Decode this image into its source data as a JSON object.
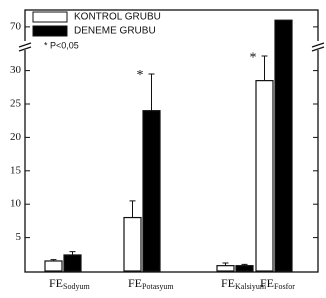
{
  "chart_data": {
    "type": "bar",
    "category_prefix": "FE",
    "categories": [
      "Sodyum",
      "Potasyum",
      "Kalsiyum",
      "Fosfor"
    ],
    "series": [
      {
        "name": "KONTROL GRUBU",
        "color": "#ffffff",
        "values": [
          1.5,
          8,
          0.8,
          28.5
        ],
        "errors": [
          0.2,
          2.5,
          0.4,
          6
        ],
        "significant": [
          false,
          false,
          false,
          true
        ]
      },
      {
        "name": "DENEME GRUBU",
        "color": "#000000",
        "values": [
          2.4,
          24,
          0.8,
          71
        ],
        "errors": [
          0.5,
          5.5,
          0.2,
          0
        ],
        "significant": [
          false,
          true,
          false,
          false
        ]
      }
    ],
    "significance_mark": "*",
    "note": "* P<0,05",
    "ylim": [
      0,
      72
    ],
    "y_break": [
      32,
      68
    ],
    "yticks": [
      5,
      10,
      15,
      20,
      25,
      30,
      70
    ],
    "grid": false,
    "legend": "upper left"
  }
}
